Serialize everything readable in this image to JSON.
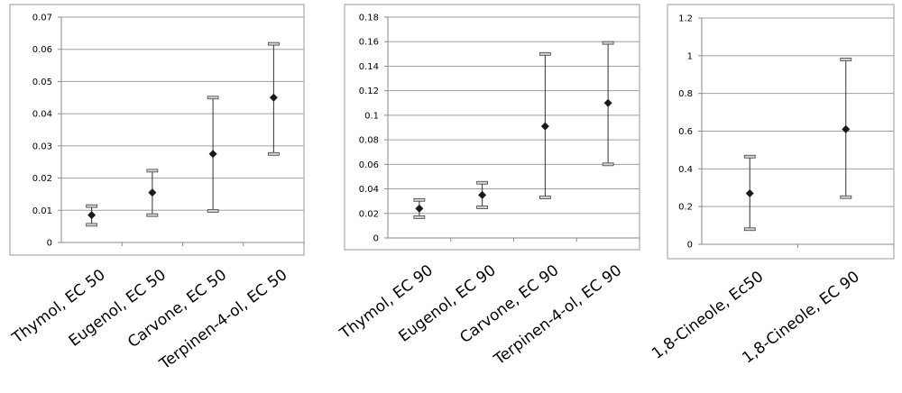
{
  "chart_data": [
    {
      "type": "scatter",
      "title": "",
      "xlabel": "",
      "ylabel": "",
      "categories": [
        "Thymol, EC 50",
        "Eugenol, EC 50",
        "Carvone, EC 50",
        "Terpinen-4-ol, EC 50"
      ],
      "values": [
        0.0085,
        0.0155,
        0.0275,
        0.045
      ],
      "error_low": [
        0.0055,
        0.0085,
        0.0098,
        0.0275
      ],
      "error_high": [
        0.0113,
        0.0223,
        0.045,
        0.0617
      ],
      "ylim": [
        0,
        0.07
      ],
      "yticks": [
        "0",
        "0.01",
        "0.02",
        "0.03",
        "0.04",
        "0.05",
        "0.06",
        "0.07"
      ],
      "grid": true,
      "legend": "none"
    },
    {
      "type": "scatter",
      "title": "",
      "xlabel": "",
      "ylabel": "",
      "categories": [
        "Thymol, EC 90",
        "Eugenol, EC 90",
        "Carvone, EC 90",
        "Terpinen-4-ol, EC 90"
      ],
      "values": [
        0.024,
        0.035,
        0.091,
        0.11
      ],
      "error_low": [
        0.017,
        0.025,
        0.033,
        0.06
      ],
      "error_high": [
        0.031,
        0.045,
        0.15,
        0.159
      ],
      "ylim": [
        0,
        0.18
      ],
      "yticks": [
        "0",
        "0.02",
        "0.04",
        "0.06",
        "0.08",
        "0.1",
        "0.12",
        "0.14",
        "0.16",
        "0.18"
      ],
      "grid": true,
      "legend": "none"
    },
    {
      "type": "scatter",
      "title": "",
      "xlabel": "",
      "ylabel": "",
      "categories": [
        "1,8-Cineole, Ec50",
        "1,8-Cineole, EC 90"
      ],
      "values": [
        0.27,
        0.61
      ],
      "error_low": [
        0.08,
        0.25
      ],
      "error_high": [
        0.465,
        0.98
      ],
      "ylim": [
        0,
        1.2
      ],
      "yticks": [
        "0",
        "0.2",
        "0.4",
        "0.6",
        "0.8",
        "1",
        "1.2"
      ],
      "grid": true,
      "legend": "none"
    }
  ]
}
